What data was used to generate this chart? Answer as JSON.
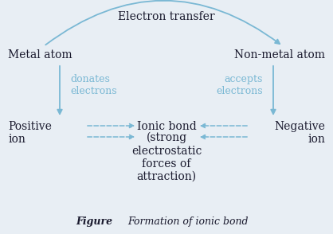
{
  "bg_color": "#e8eef4",
  "arrow_color": "#7ab8d4",
  "text_color": "#1a1a2e",
  "title": "Electron transfer",
  "metal_atom": "Metal atom",
  "nonmetal_atom": "Non-metal atom",
  "donates": "donates\nelectrons",
  "accepts": "accepts\nelectrons",
  "positive_ion": "Positive\nion",
  "negative_ion": "Negative\nion",
  "ionic_bond_line1": "Ionic bond",
  "ionic_bond_line2": "(strong\nelectrostatic\nforces of\nattraction)",
  "figure_label": "Figure",
  "figure_caption": "Formation of ionic bond",
  "main_fontsize": 10,
  "label_fontsize": 9,
  "caption_fontsize": 9
}
